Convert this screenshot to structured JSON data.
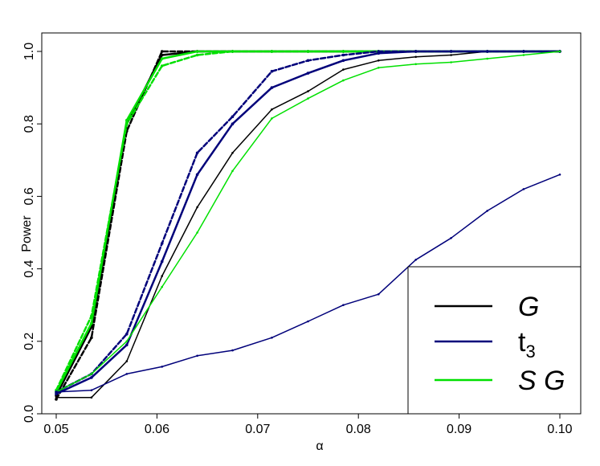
{
  "chart_data": {
    "type": "line",
    "title": "",
    "xlabel": "α",
    "ylabel": "Power",
    "xlim": [
      0.05,
      0.1
    ],
    "ylim": [
      0.0,
      1.0
    ],
    "x_ticks": [
      0.05,
      0.06,
      0.07,
      0.08,
      0.09,
      0.1
    ],
    "x_tick_labels": [
      "0.05",
      "0.06",
      "0.07",
      "0.08",
      "0.09",
      "0.10"
    ],
    "y_ticks": [
      0.0,
      0.2,
      0.4,
      0.6,
      0.8,
      1.0
    ],
    "y_tick_labels": [
      "0.0",
      "0.2",
      "0.4",
      "0.6",
      "0.8",
      "1.0"
    ],
    "grid": false,
    "legend_position": "bottom-right",
    "legend": [
      {
        "label": "G",
        "color": "#000000",
        "italic": true,
        "subscript": ""
      },
      {
        "label": "t",
        "color": "#00007a",
        "italic": false,
        "subscript": "3"
      },
      {
        "label": "S G",
        "color": "#00e000",
        "italic": true,
        "subscript": ""
      }
    ],
    "x": [
      0.05,
      0.0535,
      0.057,
      0.0605,
      0.064,
      0.0675,
      0.0714,
      0.075,
      0.0785,
      0.082,
      0.0857,
      0.0892,
      0.0928,
      0.0964,
      0.1
    ],
    "series": [
      {
        "group": "G",
        "color": "#000000",
        "style": "solid",
        "width": 2.5,
        "values": [
          0.05,
          0.24,
          0.8,
          0.99,
          1.0,
          1.0,
          1.0,
          1.0,
          1.0,
          1.0,
          1.0,
          1.0,
          1.0,
          1.0,
          1.0
        ]
      },
      {
        "group": "G",
        "color": "#000000",
        "style": "dashed",
        "width": 2.5,
        "values": [
          0.04,
          0.21,
          0.78,
          1.0,
          1.0,
          1.0,
          1.0,
          1.0,
          1.0,
          1.0,
          1.0,
          1.0,
          1.0,
          1.0,
          1.0
        ]
      },
      {
        "group": "S G",
        "color": "#00e000",
        "style": "solid",
        "width": 2.5,
        "values": [
          0.06,
          0.25,
          0.81,
          0.98,
          1.0,
          1.0,
          1.0,
          1.0,
          1.0,
          1.0,
          1.0,
          1.0,
          1.0,
          1.0,
          1.0
        ]
      },
      {
        "group": "S G",
        "color": "#00e000",
        "style": "dashed",
        "width": 2.5,
        "values": [
          0.065,
          0.27,
          0.8,
          0.96,
          0.99,
          1.0,
          1.0,
          1.0,
          1.0,
          1.0,
          1.0,
          1.0,
          1.0,
          1.0,
          1.0
        ]
      },
      {
        "group": "G",
        "color": "#000000",
        "style": "solid",
        "width": 1.5,
        "values": [
          0.045,
          0.045,
          0.145,
          0.38,
          0.57,
          0.72,
          0.84,
          0.89,
          0.95,
          0.975,
          0.985,
          0.99,
          1.0,
          1.0,
          1.0
        ]
      },
      {
        "group": "t3",
        "color": "#00007a",
        "style": "solid",
        "width": 2.5,
        "values": [
          0.055,
          0.1,
          0.19,
          0.42,
          0.66,
          0.8,
          0.9,
          0.94,
          0.975,
          0.995,
          1.0,
          1.0,
          1.0,
          1.0,
          1.0
        ]
      },
      {
        "group": "t3",
        "color": "#00007a",
        "style": "dashed",
        "width": 2.5,
        "values": [
          0.06,
          0.11,
          0.22,
          0.47,
          0.72,
          0.82,
          0.945,
          0.975,
          0.99,
          1.0,
          1.0,
          1.0,
          1.0,
          1.0,
          1.0
        ]
      },
      {
        "group": "S G",
        "color": "#00e000",
        "style": "solid",
        "width": 1.5,
        "values": [
          0.06,
          0.11,
          0.2,
          0.35,
          0.5,
          0.67,
          0.815,
          0.87,
          0.92,
          0.955,
          0.965,
          0.97,
          0.98,
          0.99,
          1.0
        ]
      },
      {
        "group": "t3",
        "color": "#00007a",
        "style": "solid",
        "width": 1.5,
        "values": [
          0.06,
          0.065,
          0.11,
          0.13,
          0.16,
          0.175,
          0.21,
          0.255,
          0.3,
          0.33,
          0.425,
          0.485,
          0.56,
          0.62,
          0.66
        ]
      }
    ]
  }
}
